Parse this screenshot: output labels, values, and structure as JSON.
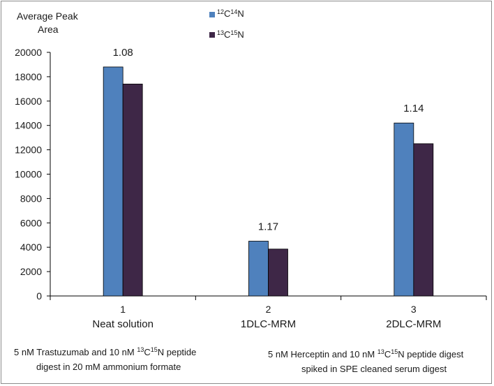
{
  "chart_data": {
    "type": "bar",
    "ylabel_line1": "Average Peak",
    "ylabel_line2": "Area",
    "ylim": [
      0,
      20000
    ],
    "yticks": [
      0,
      2000,
      4000,
      6000,
      8000,
      10000,
      12000,
      14000,
      16000,
      18000,
      20000
    ],
    "categories": [
      {
        "number": "1",
        "name": "Neat solution"
      },
      {
        "number": "2",
        "name": "1DLC-MRM"
      },
      {
        "number": "3",
        "name": "2DLC-MRM"
      }
    ],
    "series": [
      {
        "name_sup1": "12",
        "name_mid": "C",
        "name_sup2": "14",
        "name_end": "N",
        "color": "#4f81bd",
        "values": [
          18800,
          4500,
          14200
        ]
      },
      {
        "name_sup1": "13",
        "name_mid": "C",
        "name_sup2": "15",
        "name_end": "N",
        "color": "#3e2747",
        "values": [
          17400,
          3850,
          12500
        ]
      }
    ],
    "ratio_labels": [
      "1.08",
      "1.17",
      "1.14"
    ],
    "legend_position": "top-center",
    "grid": false
  },
  "notes": {
    "left_line1_a": "5 nM Trastuzumab and 10 nM ",
    "left_line1_sup1": "13",
    "left_line1_b": "C",
    "left_line1_sup2": "15",
    "left_line1_c": "N peptide",
    "left_line2": "digest in 20 mM ammonium formate",
    "right_line1_a": "5 nM Herceptin and 10 nM ",
    "right_line1_sup1": "13",
    "right_line1_b": "C",
    "right_line1_sup2": "15",
    "right_line1_c": "N peptide digest",
    "right_line2": "spiked in SPE cleaned serum digest"
  }
}
